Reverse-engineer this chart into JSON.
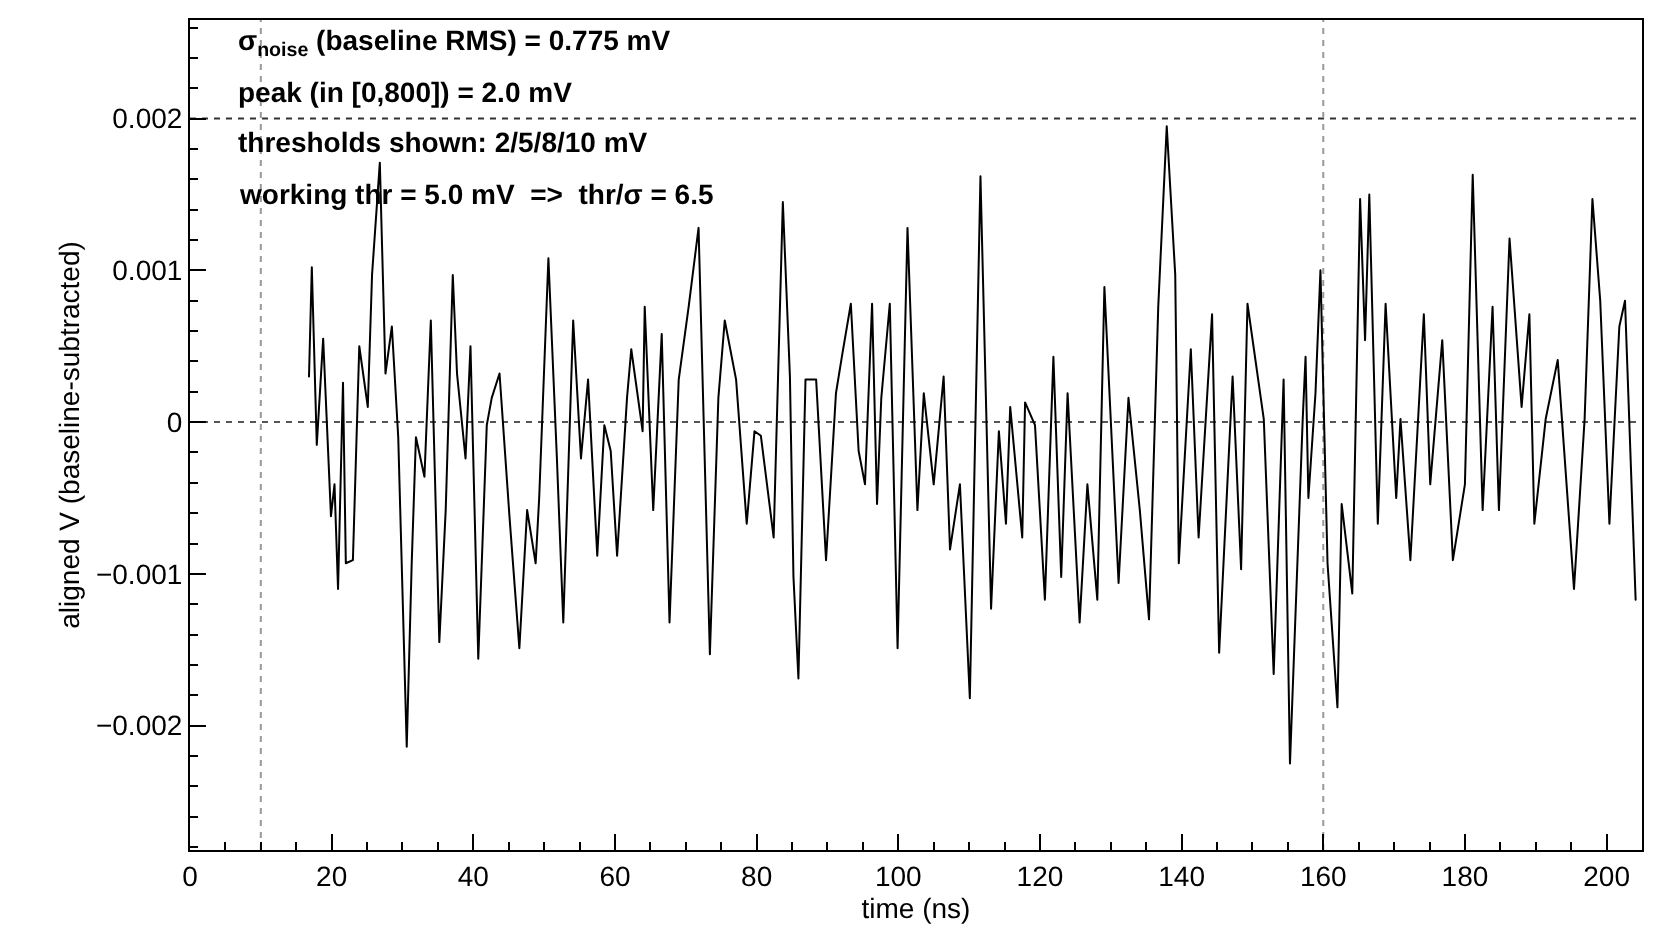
{
  "chart_data": {
    "type": "line",
    "xlabel": "time (ns)",
    "ylabel": "aligned V (baseline-subtracted)",
    "annotations": [
      "σ$_{noise}$ (baseline RMS) = 0.775 mV",
      "peak (in [0,800]) = 2.0 mV",
      "thresholds shown: 2/5/8/10 mV",
      "working thr = 5.0 mV  =>  thr/σ = 6.5"
    ],
    "x": [
      16.8,
      17.2,
      17.9,
      18.8,
      19.9,
      20.4,
      20.9,
      21.6,
      22.0,
      23.0,
      23.9,
      25.1,
      25.7,
      26.8,
      27.6,
      28.5,
      29.4,
      30.6,
      31.3,
      31.9,
      33.1,
      34.0,
      35.2,
      36.1,
      37.1,
      37.7,
      38.9,
      39.6,
      40.7,
      41.9,
      42.6,
      43.7,
      45.1,
      46.5,
      47.6,
      48.8,
      49.3,
      50.6,
      51.8,
      52.7,
      54.1,
      55.2,
      56.2,
      57.5,
      58.5,
      59.4,
      60.3,
      61.7,
      62.3,
      63.9,
      64.2,
      65.4,
      66.6,
      67.7,
      69.0,
      70.4,
      71.8,
      73.4,
      74.6,
      75.5,
      77.1,
      78.6,
      79.7,
      80.6,
      82.4,
      83.7,
      84.7,
      85.2,
      85.9,
      86.9,
      88.4,
      89.8,
      91.2,
      92.1,
      93.3,
      94.4,
      95.3,
      96.3,
      97.0,
      97.6,
      98.8,
      99.9,
      101.3,
      102.7,
      103.6,
      105.0,
      106.4,
      107.3,
      108.7,
      110.1,
      111.6,
      113.1,
      114.2,
      115.2,
      115.8,
      117.5,
      117.9,
      119.3,
      120.7,
      121.9,
      123.0,
      123.9,
      125.6,
      126.7,
      128.1,
      129.1,
      131.1,
      132.5,
      134.1,
      135.4,
      136.7,
      137.9,
      139.1,
      139.6,
      141.3,
      142.4,
      144.3,
      145.3,
      147.2,
      148.4,
      149.3,
      151.6,
      153.0,
      154.4,
      155.3,
      157.1,
      157.5,
      157.9,
      158.9,
      159.6,
      160.6,
      162.0,
      162.6,
      164.1,
      165.2,
      165.9,
      166.5,
      167.7,
      168.8,
      170.3,
      170.9,
      172.3,
      174.2,
      175.1,
      176.8,
      178.3,
      180.0,
      181.1,
      182.5,
      183.9,
      184.8,
      186.3,
      188.0,
      189.1,
      189.8,
      191.4,
      193.1,
      195.4,
      196.9,
      198.0,
      199.1,
      200.4,
      201.8,
      202.6,
      204.1
    ],
    "values": [
      0.0003,
      0.00102,
      -0.00015,
      0.00055,
      -0.00062,
      -0.00041,
      -0.0011,
      0.00026,
      -0.00093,
      -0.00091,
      0.0005,
      0.0001,
      0.00097,
      0.00171,
      0.00032,
      0.00063,
      -0.0001,
      -0.00214,
      -0.00093,
      -0.0001,
      -0.00036,
      0.00067,
      -0.00145,
      -0.00058,
      0.00097,
      0.00032,
      -0.00024,
      0.0005,
      -0.00156,
      -2e-05,
      0.00016,
      0.00032,
      -0.00062,
      -0.00149,
      -0.00058,
      -0.00093,
      -0.0005,
      0.00108,
      -0.00024,
      -0.00132,
      0.00067,
      -0.00024,
      0.00028,
      -0.00088,
      -2e-05,
      -0.00019,
      -0.00088,
      0.00016,
      0.00048,
      -6e-05,
      0.00076,
      -0.00058,
      0.00058,
      -0.00132,
      0.00028,
      0.00076,
      0.00128,
      -0.00153,
      0.00016,
      0.00067,
      0.00028,
      -0.00067,
      -6e-05,
      -9e-05,
      -0.00076,
      0.00145,
      0.0003,
      -0.00102,
      -0.00169,
      0.00028,
      0.00028,
      -0.00091,
      0.00019,
      0.00045,
      0.00078,
      -0.00019,
      -0.00041,
      0.00078,
      -0.00054,
      0.00016,
      0.00078,
      -0.00149,
      0.00128,
      -0.00058,
      0.00019,
      -0.00041,
      0.0003,
      -0.00084,
      -0.00041,
      -0.00182,
      0.00162,
      -0.00123,
      -6e-05,
      -0.00067,
      0.0001,
      -0.00076,
      0.00013,
      -2e-05,
      -0.00117,
      0.00043,
      -0.00102,
      0.00019,
      -0.00132,
      -0.00041,
      -0.00117,
      0.00089,
      -0.00106,
      0.00016,
      -0.00058,
      -0.0013,
      0.00076,
      0.00195,
      0.00097,
      -0.00093,
      0.00048,
      -0.00076,
      0.00071,
      -0.00152,
      0.0003,
      -0.00097,
      0.00078,
      2e-05,
      -0.00166,
      0.00028,
      -0.00225,
      2e-05,
      0.00043,
      -0.0005,
      0.00019,
      0.001,
      -0.00093,
      -0.00188,
      -0.00054,
      -0.00113,
      0.00147,
      0.00054,
      0.0015,
      -0.00067,
      0.00078,
      -0.0005,
      2e-05,
      -0.00091,
      0.00071,
      -0.00041,
      0.00054,
      -0.00091,
      -0.00041,
      0.00163,
      -0.00058,
      0.00076,
      -0.00058,
      0.00121,
      0.0001,
      0.00071,
      -0.00067,
      2e-05,
      0.00041,
      -0.0011,
      2e-05,
      0.00147,
      0.0008,
      -0.00067,
      0.00063,
      0.0008,
      -0.00117
    ],
    "color": "#000000",
    "marker": "none",
    "line_style": "solid",
    "grid": false,
    "xlim": [
      0,
      205
    ],
    "xticks": [
      0,
      20,
      40,
      60,
      80,
      100,
      120,
      140,
      160,
      180,
      200
    ],
    "ylim": [
      -0.00282,
      0.00265
    ],
    "yticks": [
      {
        "value": -0.002,
        "label": "−0.002"
      },
      {
        "value": -0.001,
        "label": "−0.001"
      },
      0,
      {
        "value": 0.001,
        "label": "0.001"
      },
      {
        "value": 0.002,
        "label": "0.002"
      }
    ],
    "ref_lines": [
      {
        "axis": "y",
        "value": 0,
        "color": "#555555",
        "line_style": "dotted"
      },
      {
        "axis": "y",
        "value": 0.002,
        "color": "#333333",
        "line_style": "dotted"
      },
      {
        "axis": "x",
        "value": 10,
        "color": "#999999",
        "line_style": "dotted"
      },
      {
        "axis": "x",
        "value": 160,
        "color": "#999999",
        "line_style": "dotted"
      }
    ]
  }
}
